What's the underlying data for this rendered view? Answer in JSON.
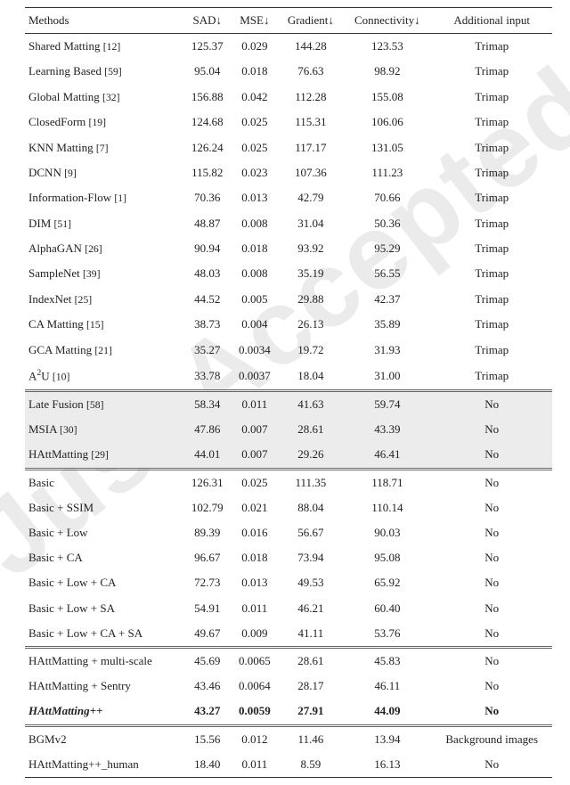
{
  "watermark": "Just Accepted",
  "columns": [
    "Methods",
    "SAD↓",
    "MSE↓",
    "Gradient↓",
    "Connectivity↓",
    "Additional input"
  ],
  "sections": [
    {
      "style": "plain",
      "rows": [
        {
          "m": "Shared Matting ",
          "ref": "[12]",
          "sad": "125.37",
          "mse": "0.029",
          "grad": "144.28",
          "con": "123.53",
          "add": "Trimap"
        },
        {
          "m": "Learning Based ",
          "ref": "[59]",
          "sad": "95.04",
          "mse": "0.018",
          "grad": "76.63",
          "con": "98.92",
          "add": "Trimap"
        },
        {
          "m": "Global Matting ",
          "ref": "[32]",
          "sad": "156.88",
          "mse": "0.042",
          "grad": "112.28",
          "con": "155.08",
          "add": "Trimap"
        },
        {
          "m": "ClosedForm ",
          "ref": "[19]",
          "sad": "124.68",
          "mse": "0.025",
          "grad": "115.31",
          "con": "106.06",
          "add": "Trimap"
        },
        {
          "m": "KNN Matting ",
          "ref": "[7]",
          "sad": "126.24",
          "mse": "0.025",
          "grad": "117.17",
          "con": "131.05",
          "add": "Trimap"
        },
        {
          "m": "DCNN ",
          "ref": "[9]",
          "sad": "115.82",
          "mse": "0.023",
          "grad": "107.36",
          "con": "111.23",
          "add": "Trimap"
        },
        {
          "m": "Information-Flow ",
          "ref": "[1]",
          "sad": "70.36",
          "mse": "0.013",
          "grad": "42.79",
          "con": "70.66",
          "add": "Trimap"
        },
        {
          "m": "DIM ",
          "ref": "[51]",
          "sad": "48.87",
          "mse": "0.008",
          "grad": "31.04",
          "con": "50.36",
          "add": "Trimap"
        },
        {
          "m": "AlphaGAN ",
          "ref": "[26]",
          "sad": "90.94",
          "mse": "0.018",
          "grad": "93.92",
          "con": "95.29",
          "add": "Trimap"
        },
        {
          "m": "SampleNet ",
          "ref": "[39]",
          "sad": "48.03",
          "mse": "0.008",
          "grad": "35.19",
          "con": "56.55",
          "add": "Trimap"
        },
        {
          "m": "IndexNet ",
          "ref": "[25]",
          "sad": "44.52",
          "mse": "0.005",
          "grad": "29.88",
          "con": "42.37",
          "add": "Trimap"
        },
        {
          "m": "CA Matting ",
          "ref": "[15]",
          "sad": "38.73",
          "mse": "0.004",
          "grad": "26.13",
          "con": "35.89",
          "add": "Trimap"
        },
        {
          "m": "GCA Matting ",
          "ref": "[21]",
          "sad": "35.27",
          "mse": "0.0034",
          "grad": "19.72",
          "con": "31.93",
          "add": "Trimap"
        },
        {
          "html": "A<span class='sup'>2</span>U ",
          "ref": "[10]",
          "sad": "33.78",
          "mse": "0.0037",
          "grad": "18.04",
          "con": "31.00",
          "add": "Trimap"
        }
      ]
    },
    {
      "style": "shade",
      "sepClass": "sep-dbl",
      "rows": [
        {
          "m": "Late Fusion ",
          "ref": "[58]",
          "sad": "58.34",
          "mse": "0.011",
          "grad": "41.63",
          "con": "59.74",
          "add": "No"
        },
        {
          "m": "MSIA ",
          "ref": "[30]",
          "sad": "47.86",
          "mse": "0.007",
          "grad": "28.61",
          "con": "43.39",
          "add": "No"
        },
        {
          "m": "HAttMatting ",
          "ref": "[29]",
          "sad": "44.01",
          "mse": "0.007",
          "grad": "29.26",
          "con": "46.41",
          "add": "No"
        }
      ]
    },
    {
      "style": "plain",
      "sepClass": "sep-dbl",
      "rows": [
        {
          "m": "Basic",
          "sad": "126.31",
          "mse": "0.025",
          "grad": "111.35",
          "con": "118.71",
          "add": "No"
        },
        {
          "m": "Basic + SSIM",
          "sad": "102.79",
          "mse": "0.021",
          "grad": "88.04",
          "con": "110.14",
          "add": "No"
        },
        {
          "m": "Basic + Low",
          "sad": "89.39",
          "mse": "0.016",
          "grad": "56.67",
          "con": "90.03",
          "add": "No"
        },
        {
          "m": "Basic + CA",
          "sad": "96.67",
          "mse": "0.018",
          "grad": "73.94",
          "con": "95.08",
          "add": "No"
        },
        {
          "m": "Basic + Low + CA",
          "sad": "72.73",
          "mse": "0.013",
          "grad": "49.53",
          "con": "65.92",
          "add": "No"
        },
        {
          "m": "Basic + Low + SA",
          "sad": "54.91",
          "mse": "0.011",
          "grad": "46.21",
          "con": "60.40",
          "add": "No"
        },
        {
          "m": "Basic + Low + CA + SA",
          "sad": "49.67",
          "mse": "0.009",
          "grad": "41.11",
          "con": "53.76",
          "add": "No"
        }
      ]
    },
    {
      "style": "plain",
      "sepClass": "sep-dbl",
      "rows": [
        {
          "m": "HAttMatting + multi-scale",
          "sad": "45.69",
          "mse": "0.0065",
          "grad": "28.61",
          "con": "45.83",
          "add": "No"
        },
        {
          "m": "HAttMatting + Sentry",
          "sad": "43.46",
          "mse": "0.0064",
          "grad": "28.17",
          "con": "46.11",
          "add": "No"
        },
        {
          "m": "HAttMatting++",
          "sad": "43.27",
          "mse": "0.0059",
          "grad": "27.91",
          "con": "44.09",
          "add": "No",
          "bold": true,
          "ital": true
        }
      ]
    },
    {
      "style": "plain",
      "sepClass": "sep-dbl",
      "rows": [
        {
          "m": "BGMv2",
          "sad": "15.56",
          "mse": "0.012",
          "grad": "11.46",
          "con": "13.94",
          "add": "Background images"
        },
        {
          "m": "HAttMatting++_human",
          "sad": "18.40",
          "mse": "0.011",
          "grad": "8.59",
          "con": "16.13",
          "add": "No"
        }
      ]
    }
  ]
}
